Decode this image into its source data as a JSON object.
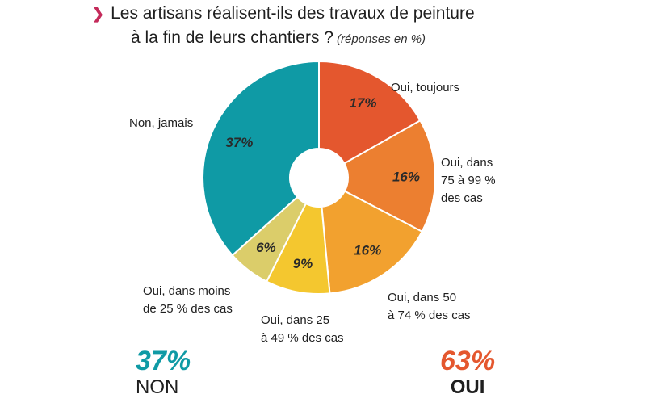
{
  "header": {
    "line1": "Les artisans réalisent-ils des travaux de peinture",
    "line2": "à la fin de leurs chantiers ?",
    "subtitle": "(réponses en %)"
  },
  "chart_data": {
    "type": "pie",
    "donut": true,
    "start_angle_deg": 0,
    "direction": "clockwise",
    "slices": [
      {
        "label": "Oui, toujours",
        "value": 17,
        "value_label": "17%",
        "color": "#e4572e"
      },
      {
        "label": "Oui, dans\n75 à 99 %\ndes cas",
        "value": 16,
        "value_label": "16%",
        "color": "#ec7f30"
      },
      {
        "label": "Oui, dans 50\nà 74 % des cas",
        "value": 16,
        "value_label": "16%",
        "color": "#f2a12f"
      },
      {
        "label": "Oui, dans 25\nà 49 % des cas",
        "value": 9,
        "value_label": "9%",
        "color": "#f4c72f"
      },
      {
        "label": "Oui, dans moins\nde 25 % des cas",
        "value": 6,
        "value_label": "6%",
        "color": "#dbcd6a"
      },
      {
        "label": "Non, jamais",
        "value": 37,
        "value_label": "37%",
        "color": "#0f9aa5"
      }
    ]
  },
  "summary": {
    "non": {
      "value": "37%",
      "label": "NON",
      "color": "#0f9aa5"
    },
    "oui": {
      "value": "63%",
      "label": "OUI",
      "color": "#e4572e"
    }
  }
}
